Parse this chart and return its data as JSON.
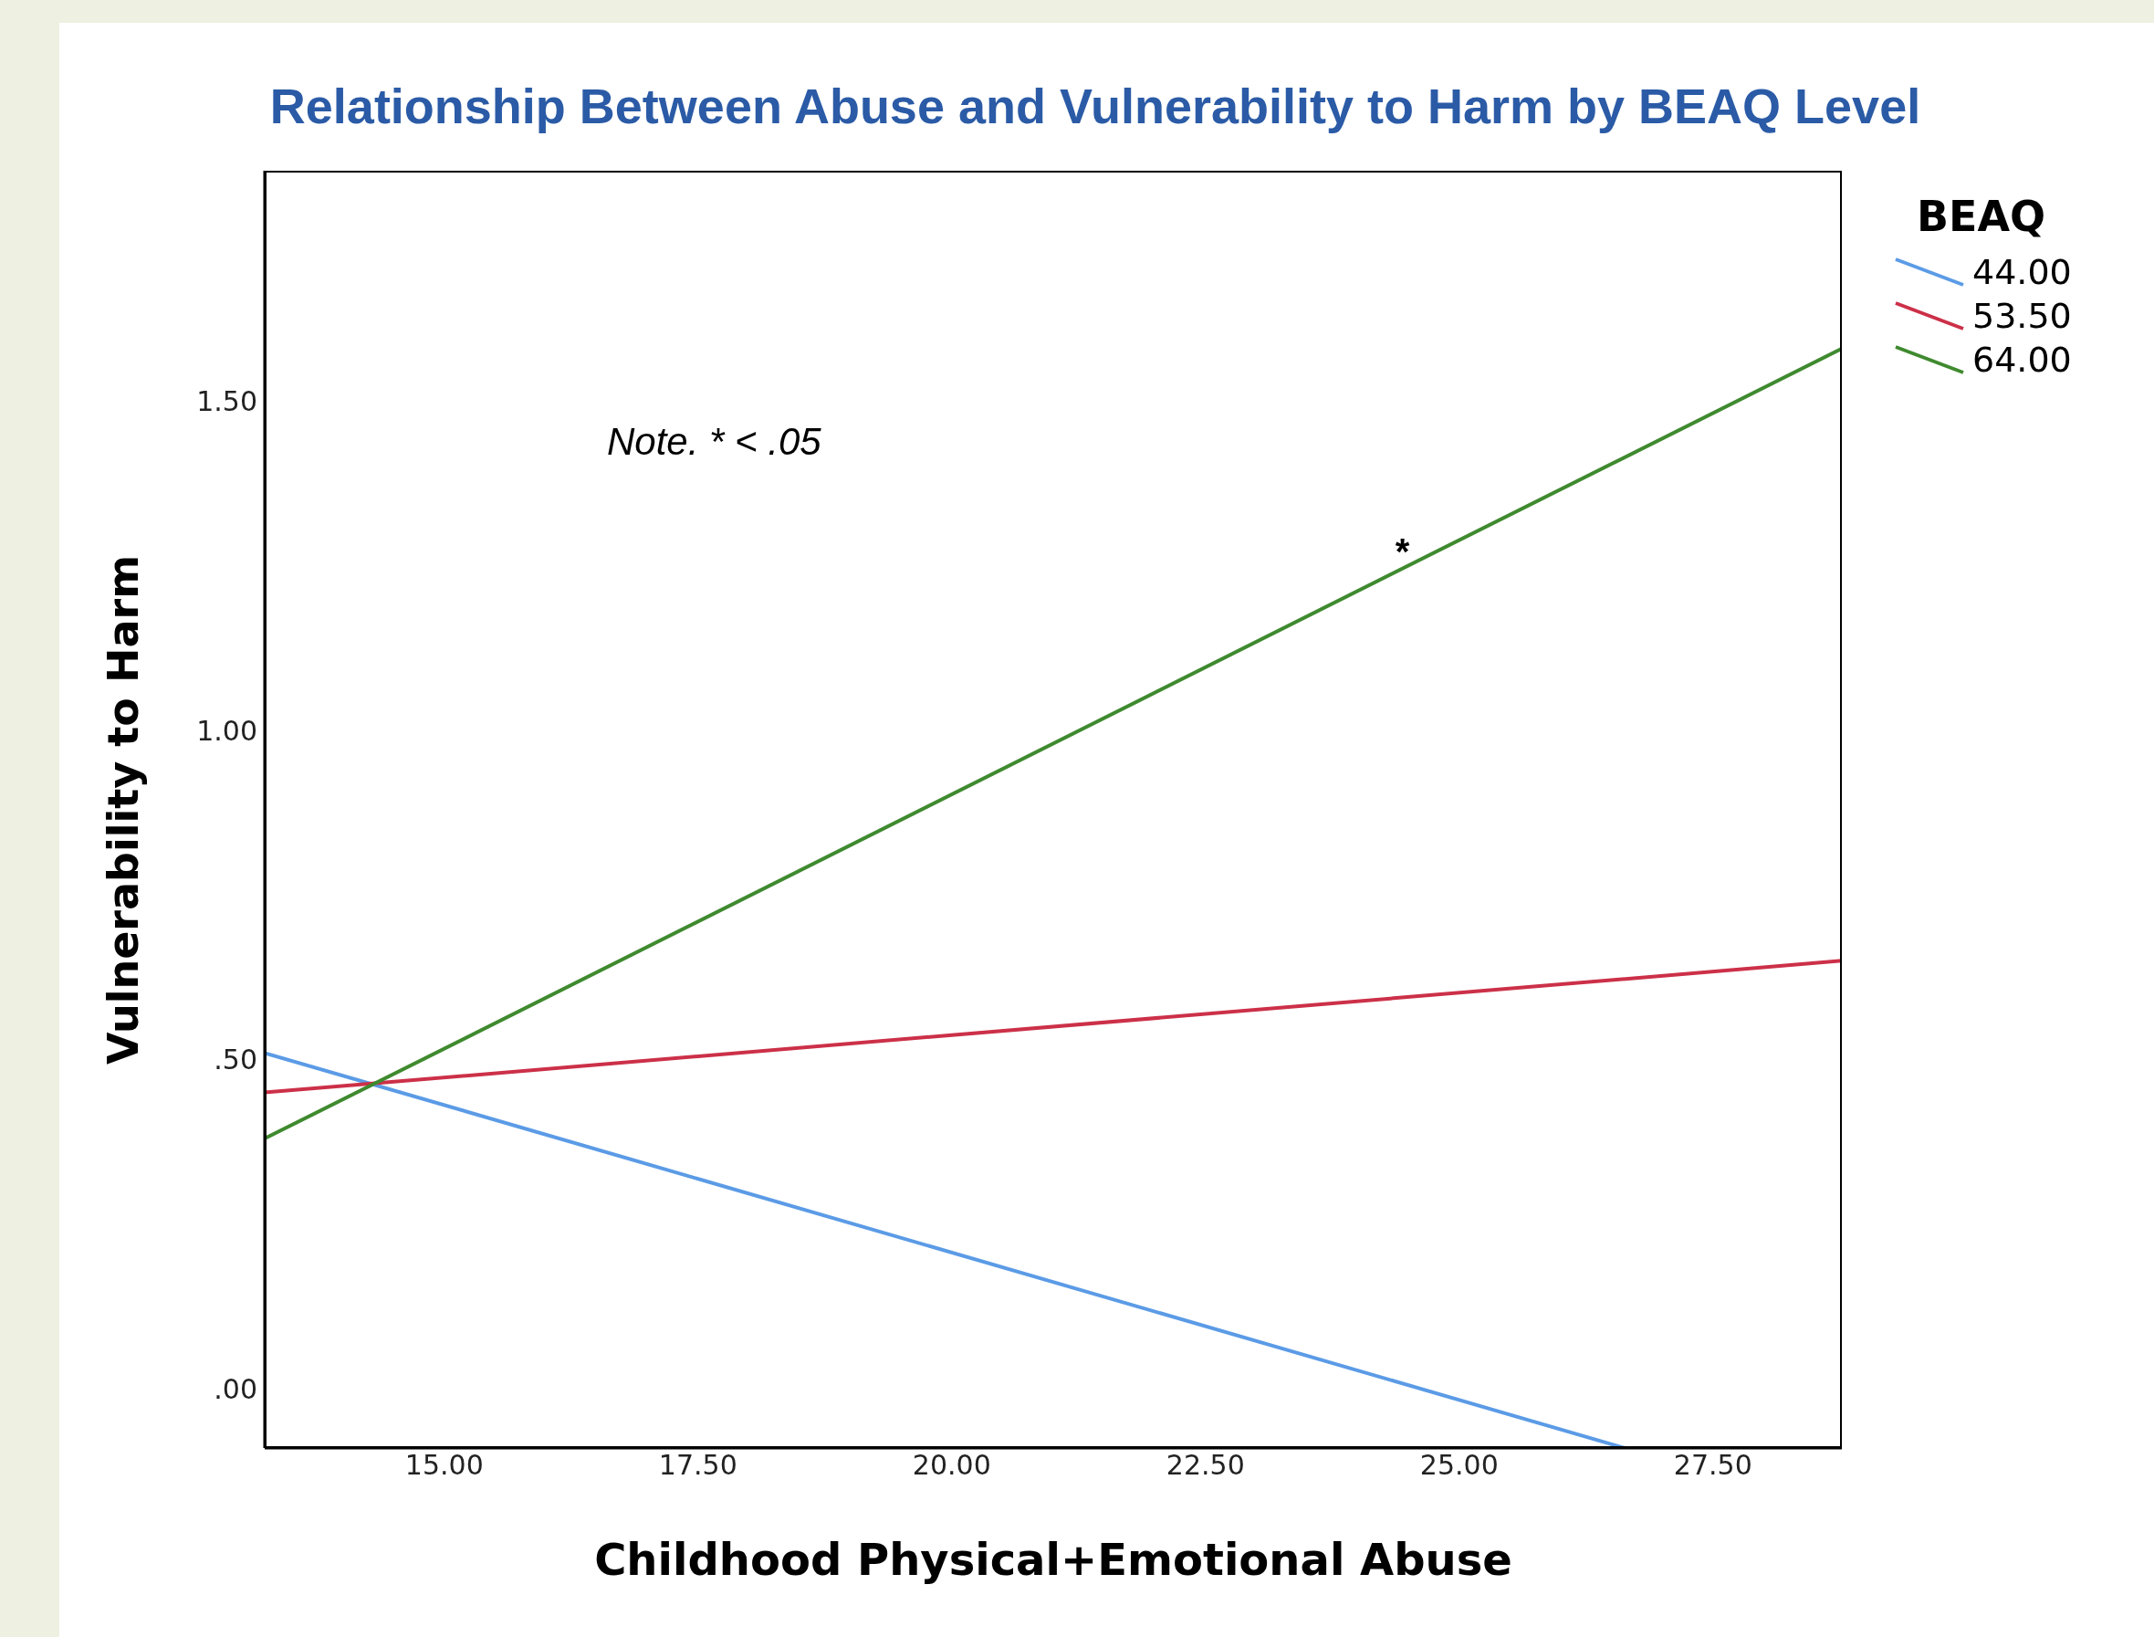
{
  "chart_data": {
    "type": "line",
    "title": "Relationship Between Abuse and Vulnerability to Harm by BEAQ Level",
    "xlabel": "Childhood Physical+Emotional Abuse",
    "ylabel": "Vulnerability to Harm",
    "legend_title": "BEAQ",
    "legend": "right",
    "xlim": [
      13.23,
      28.77
    ],
    "xticks": [
      {
        "value": 15,
        "label": "15.00"
      },
      {
        "value": 17.5,
        "label": "17.50"
      },
      {
        "value": 20,
        "label": "20.00"
      },
      {
        "value": 22.5,
        "label": "22.50"
      },
      {
        "value": 25,
        "label": "25.00"
      },
      {
        "value": 27.5,
        "label": "27.50"
      }
    ],
    "ylim": [
      -0.09,
      1.85
    ],
    "yticks": [
      {
        "value": 0,
        "label": ".00"
      },
      {
        "value": 0.5,
        "label": ".50"
      },
      {
        "value": 1,
        "label": "1.00"
      },
      {
        "value": 1.5,
        "label": "1.50"
      }
    ],
    "series": [
      {
        "name": "44.00",
        "color": "#5b9be6",
        "x": [
          13.23,
          26.63
        ],
        "values": [
          0.51,
          -0.09
        ]
      },
      {
        "name": "53.50",
        "color": "#cc3048",
        "x": [
          13.23,
          28.77
        ],
        "values": [
          0.45,
          0.65
        ]
      },
      {
        "name": "64.00",
        "color": "#3f8a2f",
        "x": [
          13.23,
          28.77
        ],
        "values": [
          0.38,
          1.58
        ]
      }
    ],
    "annotations": [
      "Note. * < .05",
      {
        "text": "*",
        "x": 24.44,
        "y": 1.25
      }
    ]
  }
}
